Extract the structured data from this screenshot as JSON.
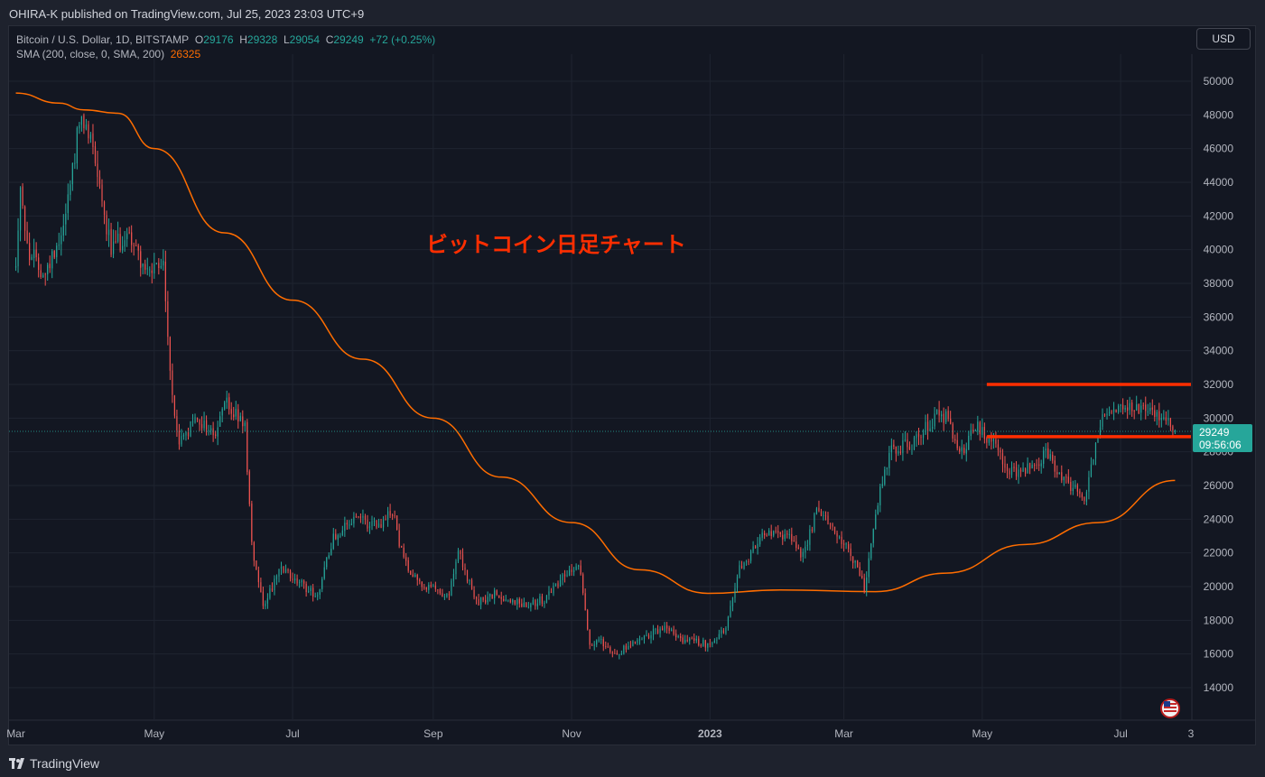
{
  "header": {
    "published_by": "OHIRA-K published on TradingView.com, Jul 25, 2023 23:03 UTC+9"
  },
  "legend": {
    "symbol": "Bitcoin / U.S. Dollar, 1D, BITSTAMP",
    "o_label": "O",
    "o_value": "29176",
    "h_label": "H",
    "h_value": "29328",
    "l_label": "L",
    "l_value": "29054",
    "c_label": "C",
    "c_value": "29249",
    "change": "+72 (+0.25%)",
    "sma_label": "SMA (200, close, 0, SMA, 200)",
    "sma_value": "26325"
  },
  "currency_button": "USD",
  "annotation": "ビットコイン日足チャート",
  "price_badge": {
    "price": "29249",
    "countdown": "09:56:06"
  },
  "footer": {
    "brand": "TradingView"
  },
  "colors": {
    "up": "#26a69a",
    "down": "#ef5350",
    "sma": "#ff6d00",
    "hline": "#ff2e00",
    "annotation": "#ff2e00",
    "background": "#131722"
  },
  "chart_data": {
    "type": "candlestick",
    "x_tick_labels": [
      "Mar",
      "May",
      "Jul",
      "Sep",
      "Nov",
      "2023",
      "Mar",
      "May",
      "Jul",
      "3"
    ],
    "y_tick_labels": [
      "14000",
      "16000",
      "18000",
      "20000",
      "22000",
      "24000",
      "26000",
      "28000",
      "30000",
      "32000",
      "34000",
      "36000",
      "38000",
      "40000",
      "42000",
      "44000",
      "46000",
      "48000",
      "50000"
    ],
    "ylim": [
      12600,
      51800
    ],
    "price_path": [
      [
        "2022-03-01",
        39000
      ],
      [
        "2022-03-03",
        44000
      ],
      [
        "2022-03-06",
        40000
      ],
      [
        "2022-03-14",
        38500
      ],
      [
        "2022-03-22",
        41500
      ],
      [
        "2022-03-29",
        47500
      ],
      [
        "2022-04-04",
        46500
      ],
      [
        "2022-04-08",
        43000
      ],
      [
        "2022-04-12",
        40000
      ],
      [
        "2022-04-20",
        41000
      ],
      [
        "2022-04-28",
        38500
      ],
      [
        "2022-05-05",
        39000
      ],
      [
        "2022-05-09",
        31000
      ],
      [
        "2022-05-12",
        28500
      ],
      [
        "2022-05-20",
        30000
      ],
      [
        "2022-05-28",
        29000
      ],
      [
        "2022-06-01",
        31000
      ],
      [
        "2022-06-10",
        29500
      ],
      [
        "2022-06-13",
        22500
      ],
      [
        "2022-06-18",
        19000
      ],
      [
        "2022-06-26",
        21000
      ],
      [
        "2022-07-06",
        20000
      ],
      [
        "2022-07-12",
        19500
      ],
      [
        "2022-07-19",
        23000
      ],
      [
        "2022-07-29",
        24000
      ],
      [
        "2022-08-08",
        23500
      ],
      [
        "2022-08-14",
        24500
      ],
      [
        "2022-08-19",
        21500
      ],
      [
        "2022-08-28",
        20000
      ],
      [
        "2022-09-08",
        19500
      ],
      [
        "2022-09-12",
        22000
      ],
      [
        "2022-09-20",
        19000
      ],
      [
        "2022-09-28",
        19500
      ],
      [
        "2022-10-10",
        19000
      ],
      [
        "2022-10-20",
        19200
      ],
      [
        "2022-10-29",
        20800
      ],
      [
        "2022-11-05",
        21000
      ],
      [
        "2022-11-09",
        16500
      ],
      [
        "2022-11-14",
        16800
      ],
      [
        "2022-11-21",
        16000
      ],
      [
        "2022-12-01",
        17000
      ],
      [
        "2022-12-13",
        17500
      ],
      [
        "2022-12-20",
        16800
      ],
      [
        "2022-12-31",
        16600
      ],
      [
        "2023-01-08",
        17500
      ],
      [
        "2023-01-14",
        21000
      ],
      [
        "2023-01-24",
        23000
      ],
      [
        "2023-02-05",
        23000
      ],
      [
        "2023-02-11",
        21800
      ],
      [
        "2023-02-17",
        24500
      ],
      [
        "2023-02-24",
        23500
      ],
      [
        "2023-03-03",
        22300
      ],
      [
        "2023-03-10",
        20000
      ],
      [
        "2023-03-16",
        25000
      ],
      [
        "2023-03-21",
        28000
      ],
      [
        "2023-03-31",
        28500
      ],
      [
        "2023-04-11",
        30200
      ],
      [
        "2023-04-16",
        30000
      ],
      [
        "2023-04-21",
        27800
      ],
      [
        "2023-04-28",
        29500
      ],
      [
        "2023-05-06",
        28500
      ],
      [
        "2023-05-12",
        26800
      ],
      [
        "2023-05-22",
        27000
      ],
      [
        "2023-05-29",
        28000
      ],
      [
        "2023-06-05",
        26500
      ],
      [
        "2023-06-15",
        25200
      ],
      [
        "2023-06-20",
        28500
      ],
      [
        "2023-06-23",
        30500
      ],
      [
        "2023-07-01",
        30500
      ],
      [
        "2023-07-14",
        30400
      ],
      [
        "2023-07-20",
        29900
      ],
      [
        "2023-07-25",
        29249
      ]
    ],
    "sma_path": [
      [
        "2022-03-01",
        49300
      ],
      [
        "2022-03-20",
        48700
      ],
      [
        "2022-03-31",
        48300
      ],
      [
        "2022-04-15",
        48100
      ],
      [
        "2022-05-01",
        46000
      ],
      [
        "2022-06-01",
        41000
      ],
      [
        "2022-07-01",
        37000
      ],
      [
        "2022-08-01",
        33500
      ],
      [
        "2022-09-01",
        30000
      ],
      [
        "2022-10-01",
        26500
      ],
      [
        "2022-11-01",
        23800
      ],
      [
        "2022-12-01",
        21000
      ],
      [
        "2022-12-31",
        19600
      ],
      [
        "2023-02-01",
        19800
      ],
      [
        "2023-03-15",
        19700
      ],
      [
        "2023-04-15",
        20800
      ],
      [
        "2023-05-20",
        22500
      ],
      [
        "2023-06-21",
        23800
      ],
      [
        "2023-07-25",
        26300
      ]
    ],
    "horizontal_lines": [
      {
        "start": "2023-05-03",
        "price": 32000
      },
      {
        "start": "2023-05-03",
        "price": 28900
      }
    ]
  }
}
